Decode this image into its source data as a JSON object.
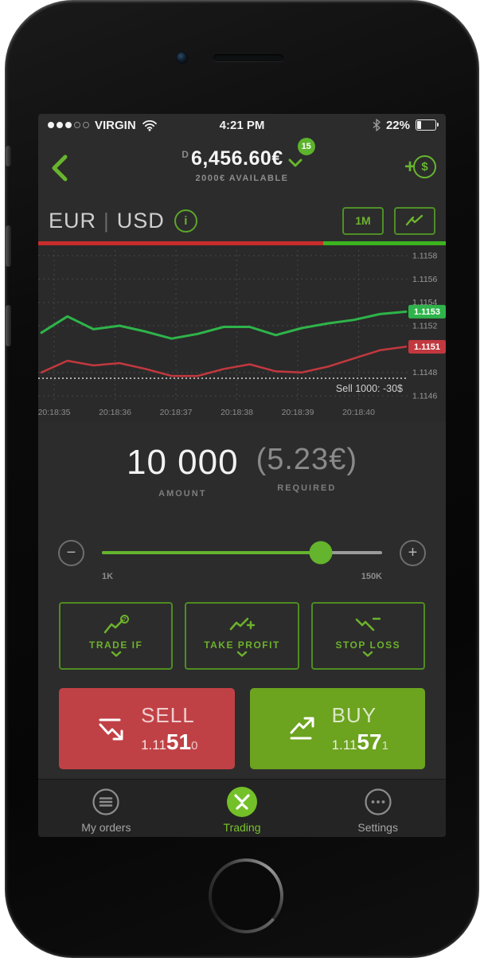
{
  "statusbar": {
    "carrier": "VIRGIN",
    "time": "4:21 PM",
    "battery_label": "22%",
    "battery_percent": 22,
    "signal_filled": 3,
    "signal_total": 5
  },
  "header": {
    "account_type": "D",
    "balance": "6,456.60€",
    "notifications": "15",
    "available": "2000€ AVAILABLE",
    "add_funds_plus": "+",
    "add_funds_symbol": "$"
  },
  "pair": {
    "base": "EUR",
    "divider": "|",
    "quote": "USD",
    "info": "i",
    "timeframe": "1M"
  },
  "sentiment": {
    "sell_percent": 70,
    "buy_percent": 30
  },
  "chart_data": {
    "type": "line",
    "x": [
      "20:18:35",
      "20:18:36",
      "20:18:37",
      "20:18:38",
      "20:18:39",
      "20:18:40"
    ],
    "ylim": [
      1.11458,
      1.1158
    ],
    "yticks": [
      "1.1158",
      "1.1156",
      "1.1154",
      "1.1152",
      "1.1148",
      "1.1146"
    ],
    "grid": true,
    "legend_position": "none",
    "series": [
      {
        "name": "buy-price",
        "color": "#2eb44a",
        "last_label": "1.1153",
        "values": [
          1.11514,
          1.11528,
          1.11517,
          1.1152,
          1.11515,
          1.11509,
          1.11513,
          1.11519,
          1.11519,
          1.11512,
          1.11518,
          1.11522,
          1.11525,
          1.1153,
          1.11532
        ]
      },
      {
        "name": "sell-price",
        "color": "#c2383e",
        "last_label": "1.1151",
        "values": [
          1.1148,
          1.1149,
          1.11486,
          1.11488,
          1.11483,
          1.11477,
          1.11477,
          1.11483,
          1.11487,
          1.11481,
          1.1148,
          1.11485,
          1.11492,
          1.11499,
          1.11502
        ]
      }
    ],
    "annotation": {
      "text": "Sell 1000: -30$",
      "y": 1.11475
    }
  },
  "order": {
    "amount": "10 000",
    "amount_label": "AMOUNT",
    "required": "(5.23€)",
    "required_label": "REQUIRED",
    "range_min": "1K",
    "range_max": "150K",
    "slider_percent": 78,
    "minus": "−",
    "plus": "+"
  },
  "options": [
    {
      "label": "TRADE IF"
    },
    {
      "label": "TAKE PROFIT"
    },
    {
      "label": "STOP LOSS"
    }
  ],
  "trade": {
    "sell_label": "SELL",
    "sell_price": {
      "prefix": "1.11",
      "big": "51",
      "suffix": "0"
    },
    "buy_label": "BUY",
    "buy_price": {
      "prefix": "1.11",
      "big": "57",
      "suffix": "1"
    }
  },
  "tabbar": [
    {
      "label": "My orders"
    },
    {
      "label": "Trading"
    },
    {
      "label": "Settings"
    }
  ],
  "colors": {
    "accent_green": "#67b52e",
    "chart_green": "#2eb44a",
    "chart_red": "#c2383e",
    "sell_button": "#c04145",
    "buy_button": "#6ca31f",
    "background": "#2c2c2c"
  }
}
